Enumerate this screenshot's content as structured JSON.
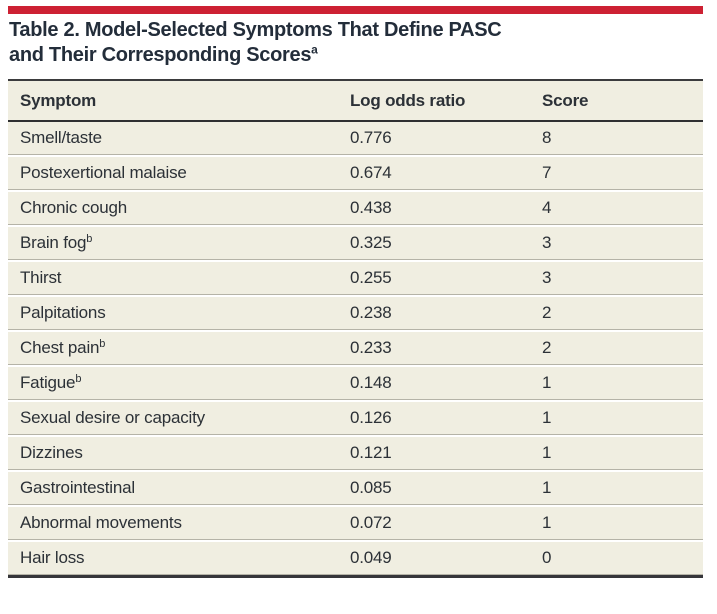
{
  "table": {
    "title_line1": "Table 2. Model-Selected Symptoms That Define PASC",
    "title_line2": "and Their Corresponding Scores",
    "title_superscript": "a",
    "columns": [
      "Symptom",
      "Log odds ratio",
      "Score"
    ],
    "rows": [
      {
        "symptom": "Smell/taste",
        "sup": "",
        "log_odds_ratio": "0.776",
        "score": "8"
      },
      {
        "symptom": "Postexertional malaise",
        "sup": "",
        "log_odds_ratio": "0.674",
        "score": "7"
      },
      {
        "symptom": "Chronic cough",
        "sup": "",
        "log_odds_ratio": "0.438",
        "score": "4"
      },
      {
        "symptom": "Brain fog",
        "sup": "b",
        "log_odds_ratio": "0.325",
        "score": "3"
      },
      {
        "symptom": "Thirst",
        "sup": "",
        "log_odds_ratio": "0.255",
        "score": "3"
      },
      {
        "symptom": "Palpitations",
        "sup": "",
        "log_odds_ratio": "0.238",
        "score": "2"
      },
      {
        "symptom": "Chest pain",
        "sup": "b",
        "log_odds_ratio": "0.233",
        "score": "2"
      },
      {
        "symptom": "Fatigue",
        "sup": "b",
        "log_odds_ratio": "0.148",
        "score": "1"
      },
      {
        "symptom": "Sexual desire or capacity",
        "sup": "",
        "log_odds_ratio": "0.126",
        "score": "1"
      },
      {
        "symptom": "Dizzines",
        "sup": "",
        "log_odds_ratio": "0.121",
        "score": "1"
      },
      {
        "symptom": "Gastrointestinal",
        "sup": "",
        "log_odds_ratio": "0.085",
        "score": "1"
      },
      {
        "symptom": "Abnormal movements",
        "sup": "",
        "log_odds_ratio": "0.072",
        "score": "1"
      },
      {
        "symptom": "Hair loss",
        "sup": "",
        "log_odds_ratio": "0.049",
        "score": "0"
      }
    ]
  },
  "colors": {
    "accent_red": "#cd2133",
    "row_background": "#f0eee1",
    "title_text": "#232d3a",
    "body_text": "#2c3137",
    "rule_dark": "#36363a",
    "row_hairline": "#b5b3a7"
  }
}
